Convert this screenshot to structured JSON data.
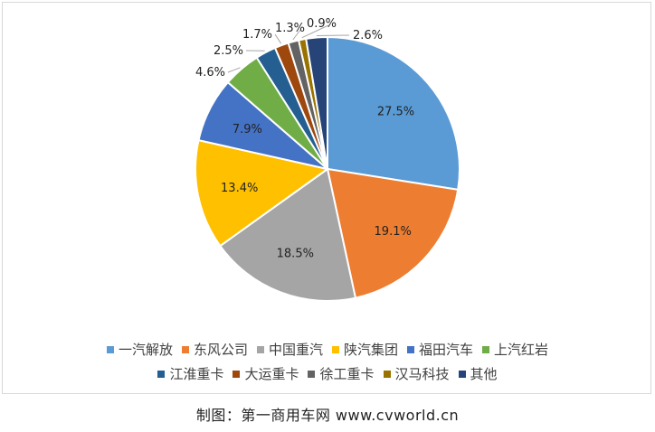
{
  "chart_data": {
    "type": "pie",
    "categories": [
      "一汽解放",
      "东风公司",
      "中国重汽",
      "陕汽集团",
      "福田汽车",
      "上汽红岩",
      "江淮重卡",
      "大运重卡",
      "徐工重卡",
      "汉马科技",
      "其他"
    ],
    "values": [
      27.5,
      19.1,
      18.5,
      13.4,
      7.9,
      4.6,
      2.5,
      1.7,
      1.3,
      0.9,
      2.6
    ],
    "data_labels": [
      "27.5%",
      "19.1%",
      "18.5%",
      "13.4%",
      "7.9%",
      "4.6%",
      "2.5%",
      "1.7%",
      "1.3%",
      "0.9%",
      "2.6%"
    ],
    "colors": [
      "#5B9BD5",
      "#ED7D31",
      "#A5A5A5",
      "#FFC000",
      "#4472C4",
      "#70AD47",
      "#255E91",
      "#9E480E",
      "#636363",
      "#997300",
      "#264478"
    ],
    "legend_position": "bottom"
  },
  "caption": "制图：第一商用车网 www.cvworld.cn"
}
